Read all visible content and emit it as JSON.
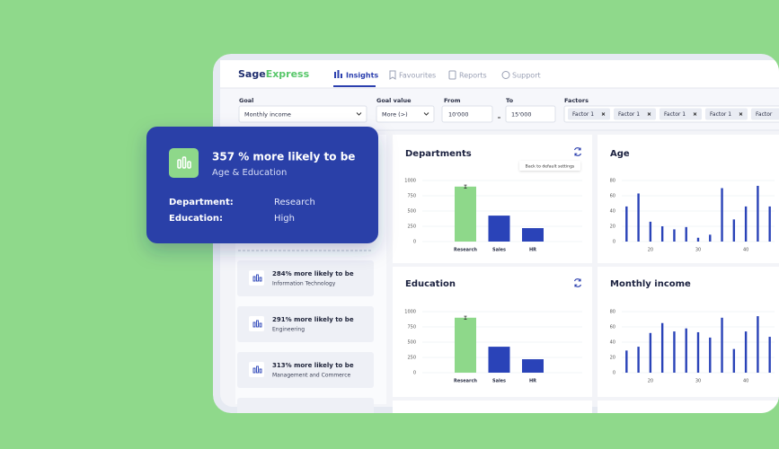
{
  "logo": {
    "first": "Sage",
    "second": "Express"
  },
  "tabs": [
    "Insights",
    "Favourites",
    "Reports",
    "Support"
  ],
  "filters": [
    {
      "label": "Goal",
      "value": "Monthly income"
    },
    {
      "label": "Goal value",
      "value": "More (>)"
    },
    {
      "label": "From",
      "value": "10'000"
    },
    {
      "label": "To",
      "value": "15'000"
    }
  ],
  "factors": {
    "label": "Factors",
    "chips": [
      "Factor 1",
      "Factor 1",
      "Factor 1",
      "Factor 1",
      "Factor"
    ]
  },
  "highlight": {
    "title": "357 % more likely to be",
    "subtitle": "Age & Education",
    "rows": [
      {
        "label": "Department:",
        "value": "Research"
      },
      {
        "label": "Education:",
        "value": "High"
      }
    ]
  },
  "insights": [
    {
      "title": "284% more likely to be",
      "subtitle": "Information Technology"
    },
    {
      "title": "291% more likely to be",
      "subtitle": "Engineering"
    },
    {
      "title": "313% more likely to be",
      "subtitle": "Management and Commerce"
    }
  ],
  "chart_data": [
    {
      "type": "bar",
      "title": "Departments",
      "tooltip": "Back to default settings",
      "categories": [
        "Research",
        "Sales",
        "HR"
      ],
      "values": [
        900,
        425,
        220
      ],
      "errors": [
        25,
        0,
        0
      ],
      "colors": [
        "#8ed88a",
        "#2a43b8",
        "#2a43b8"
      ],
      "ylim": [
        0,
        1000
      ],
      "yticks": [
        0,
        250,
        500,
        750,
        1000
      ],
      "grid": true
    },
    {
      "type": "bar",
      "title": "Age",
      "x": [
        15,
        17.5,
        20,
        22.5,
        25,
        27.5,
        30,
        32.5,
        35,
        37.5,
        40,
        42.5,
        45
      ],
      "values": [
        46,
        63,
        26,
        20,
        16,
        19,
        5,
        9,
        70,
        29,
        46,
        73,
        46
      ],
      "color": "#2a43b8",
      "xlim": [
        14,
        46
      ],
      "xticks": [
        20,
        30,
        40
      ],
      "ylim": [
        0,
        80
      ],
      "yticks": [
        0,
        20,
        40,
        60,
        80
      ],
      "grid": true
    },
    {
      "type": "bar",
      "title": "Education",
      "categories": [
        "Research",
        "Sales",
        "HR"
      ],
      "values": [
        900,
        425,
        220
      ],
      "errors": [
        25,
        0,
        0
      ],
      "colors": [
        "#8ed88a",
        "#2a43b8",
        "#2a43b8"
      ],
      "ylim": [
        0,
        1000
      ],
      "yticks": [
        0,
        250,
        500,
        750,
        1000
      ],
      "grid": true
    },
    {
      "type": "bar",
      "title": "Monthly income",
      "x": [
        15,
        17.5,
        20,
        22.5,
        25,
        27.5,
        30,
        32.5,
        35,
        37.5,
        40,
        42.5,
        45
      ],
      "values": [
        29,
        34,
        52,
        65,
        54,
        58,
        53,
        46,
        72,
        31,
        54,
        74,
        47
      ],
      "color": "#2a43b8",
      "xlim": [
        14,
        46
      ],
      "xticks": [
        20,
        30,
        40
      ],
      "ylim": [
        0,
        80
      ],
      "yticks": [
        0,
        20,
        40,
        60,
        80
      ],
      "grid": true
    }
  ]
}
